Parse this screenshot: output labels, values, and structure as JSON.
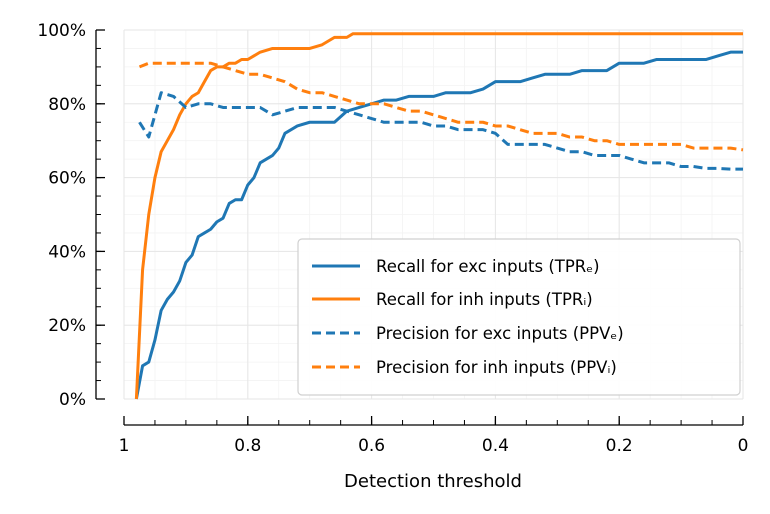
{
  "chart_data": {
    "type": "line",
    "title": "",
    "xlabel": "Detection threshold",
    "ylabel": "",
    "xlim": [
      1,
      0
    ],
    "ylim": [
      0,
      100
    ],
    "x_ticks": [
      1,
      0.8,
      0.6,
      0.4,
      0.2,
      0
    ],
    "x_tick_labels": [
      "1",
      "0.8",
      "0.6",
      "0.4",
      "0.2",
      "0"
    ],
    "y_ticks": [
      0,
      20,
      40,
      60,
      80,
      100
    ],
    "y_tick_labels": [
      "0%",
      "20%",
      "40%",
      "60%",
      "80%",
      "100%"
    ],
    "grid": true,
    "legend_position": "lower-right",
    "series": [
      {
        "name": "Recall for exc inputs (TPRₑ)",
        "color": "#1f77b4",
        "style": "solid",
        "x": [
          0.98,
          0.97,
          0.96,
          0.95,
          0.94,
          0.93,
          0.92,
          0.91,
          0.9,
          0.89,
          0.88,
          0.87,
          0.86,
          0.85,
          0.84,
          0.83,
          0.82,
          0.81,
          0.8,
          0.79,
          0.78,
          0.76,
          0.75,
          0.74,
          0.72,
          0.7,
          0.68,
          0.66,
          0.64,
          0.62,
          0.6,
          0.58,
          0.56,
          0.54,
          0.52,
          0.5,
          0.48,
          0.46,
          0.44,
          0.42,
          0.4,
          0.38,
          0.36,
          0.34,
          0.32,
          0.3,
          0.28,
          0.26,
          0.24,
          0.22,
          0.2,
          0.18,
          0.16,
          0.14,
          0.12,
          0.1,
          0.08,
          0.06,
          0.04,
          0.02,
          0.0
        ],
        "y": [
          0,
          9,
          10,
          16,
          24,
          27,
          29,
          32,
          37,
          39,
          44,
          45,
          46,
          48,
          49,
          53,
          54,
          54,
          58,
          60,
          64,
          66,
          68,
          72,
          74,
          75,
          75,
          75,
          78,
          79,
          80,
          81,
          81,
          82,
          82,
          82,
          83,
          83,
          83,
          84,
          86,
          86,
          86,
          87,
          88,
          88,
          88,
          89,
          89,
          89,
          91,
          91,
          91,
          92,
          92,
          92,
          92,
          92,
          93,
          94,
          94
        ]
      },
      {
        "name": "Recall for inh inputs (TPRᵢ)",
        "color": "#ff7f0e",
        "style": "solid",
        "x": [
          0.98,
          0.97,
          0.96,
          0.95,
          0.94,
          0.93,
          0.92,
          0.91,
          0.9,
          0.89,
          0.88,
          0.87,
          0.86,
          0.85,
          0.84,
          0.83,
          0.82,
          0.81,
          0.8,
          0.79,
          0.78,
          0.76,
          0.74,
          0.72,
          0.7,
          0.68,
          0.66,
          0.64,
          0.63,
          0.6,
          0.5,
          0.4,
          0.3,
          0.2,
          0.1,
          0.0
        ],
        "y": [
          0,
          35,
          50,
          60,
          67,
          70,
          73,
          77,
          80,
          82,
          83,
          86,
          89,
          90,
          90,
          91,
          91,
          92,
          92,
          93,
          94,
          95,
          95,
          95,
          95,
          96,
          98,
          98,
          99,
          99,
          99,
          99,
          99,
          99,
          99,
          99
        ]
      },
      {
        "name": "Precision for exc inputs (PPVₑ)",
        "color": "#1f77b4",
        "style": "dashed",
        "x": [
          0.975,
          0.96,
          0.95,
          0.94,
          0.92,
          0.9,
          0.88,
          0.86,
          0.84,
          0.82,
          0.8,
          0.78,
          0.76,
          0.74,
          0.72,
          0.7,
          0.68,
          0.66,
          0.64,
          0.62,
          0.6,
          0.58,
          0.56,
          0.54,
          0.52,
          0.5,
          0.48,
          0.46,
          0.44,
          0.42,
          0.4,
          0.38,
          0.36,
          0.34,
          0.32,
          0.3,
          0.28,
          0.26,
          0.24,
          0.22,
          0.2,
          0.18,
          0.16,
          0.14,
          0.12,
          0.1,
          0.08,
          0.06,
          0.04,
          0.02,
          0.0
        ],
        "y": [
          75,
          71,
          77,
          83,
          82,
          79,
          80,
          80,
          79,
          79,
          79,
          79,
          77,
          78,
          79,
          79,
          79,
          79,
          78,
          77,
          76,
          75,
          75,
          75,
          75,
          74,
          74,
          73,
          73,
          73,
          72,
          69,
          69,
          69,
          69,
          68,
          67,
          67,
          66,
          66,
          66,
          65,
          64,
          64,
          64,
          63,
          63,
          62.5,
          62.5,
          62.3,
          62.3
        ]
      },
      {
        "name": "Precision for inh inputs (PPVᵢ)",
        "color": "#ff7f0e",
        "style": "dashed",
        "x": [
          0.975,
          0.96,
          0.94,
          0.92,
          0.9,
          0.88,
          0.86,
          0.84,
          0.82,
          0.8,
          0.78,
          0.76,
          0.74,
          0.72,
          0.7,
          0.68,
          0.66,
          0.64,
          0.62,
          0.6,
          0.58,
          0.56,
          0.54,
          0.52,
          0.5,
          0.48,
          0.46,
          0.44,
          0.42,
          0.4,
          0.38,
          0.36,
          0.34,
          0.32,
          0.3,
          0.28,
          0.26,
          0.24,
          0.22,
          0.2,
          0.18,
          0.16,
          0.14,
          0.12,
          0.1,
          0.08,
          0.06,
          0.04,
          0.02,
          0.0
        ],
        "y": [
          90,
          91,
          91,
          91,
          91,
          91,
          91,
          90,
          89,
          88,
          88,
          87,
          86,
          84,
          83,
          83,
          82,
          81,
          80,
          80,
          80,
          79,
          78,
          78,
          77,
          76,
          75,
          75,
          75,
          74,
          74,
          73,
          72,
          72,
          72,
          71,
          71,
          70,
          70,
          69,
          69,
          69,
          69,
          69,
          69,
          68,
          68,
          68,
          68,
          67.5
        ]
      }
    ]
  }
}
